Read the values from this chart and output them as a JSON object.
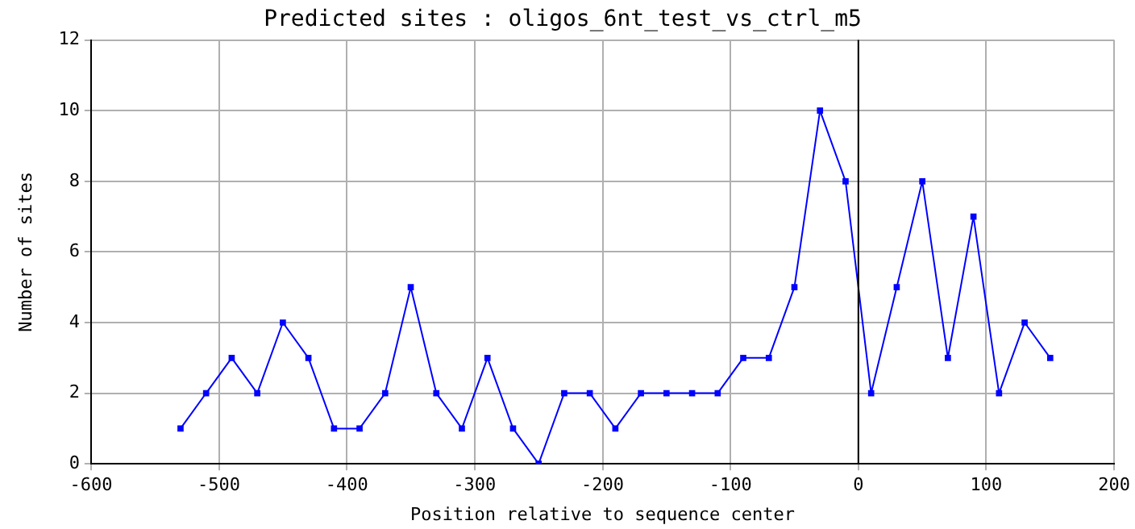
{
  "chart_data": {
    "type": "line",
    "title": "Predicted sites : oligos_6nt_test_vs_ctrl_m5",
    "xlabel": "Position relative to sequence center",
    "ylabel": "Number of sites",
    "x": [
      -530,
      -510,
      -490,
      -470,
      -450,
      -430,
      -410,
      -390,
      -370,
      -350,
      -330,
      -310,
      -290,
      -270,
      -250,
      -230,
      -210,
      -190,
      -170,
      -150,
      -130,
      -110,
      -90,
      -70,
      -50,
      -30,
      -10,
      10,
      30,
      50,
      70,
      90,
      110,
      130,
      150
    ],
    "series": [
      {
        "color": "#0000ff",
        "values": [
          1,
          2,
          3,
          2,
          4,
          3,
          1,
          1,
          2,
          5,
          2,
          1,
          3,
          1,
          0,
          2,
          2,
          1,
          2,
          2,
          2,
          2,
          3,
          3,
          5,
          10,
          8,
          2,
          5,
          8,
          3,
          7,
          2,
          4,
          3
        ]
      }
    ],
    "xlim": [
      -600,
      200
    ],
    "xticks": [
      -600,
      -500,
      -400,
      -300,
      -200,
      -100,
      0,
      100,
      200
    ],
    "ylim": [
      0,
      12
    ],
    "yticks": [
      0,
      2,
      4,
      6,
      8,
      10,
      12
    ],
    "ref_lines": [
      {
        "axis": "x",
        "value": 0,
        "color": "#000000"
      }
    ],
    "grid": true,
    "legend": false,
    "marker": "square",
    "line_style": "solid"
  }
}
